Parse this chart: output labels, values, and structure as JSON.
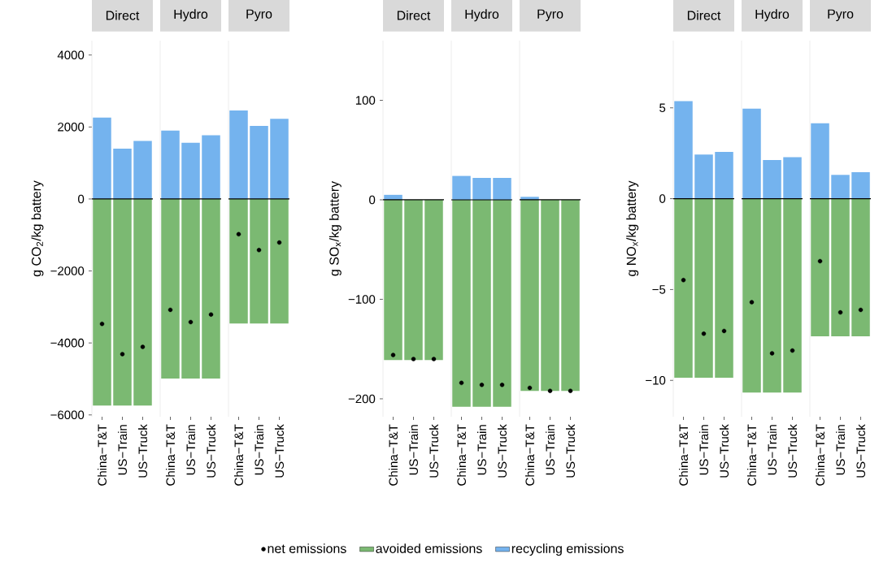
{
  "chart_data": [
    {
      "type": "bar",
      "title": "Direct",
      "ylabel": "g CO$_{2}$/kg battery",
      "categories": [
        "China−T&T",
        "US−Train",
        "US−Truck"
      ],
      "ylim": [
        -6050,
        4400
      ],
      "yticks": [
        {
          "value": 4000,
          "label": "4000"
        },
        {
          "value": 2000,
          "label": "2000"
        },
        {
          "value": 0,
          "label": "0"
        },
        {
          "value": -2000,
          "label": "−2000"
        },
        {
          "value": -4000,
          "label": "−4000"
        },
        {
          "value": -6000,
          "label": "−6000"
        }
      ],
      "stacked": true,
      "marker": "circle",
      "ref_lines": [
        {
          "axis": "y",
          "value": 0,
          "color": "#000000"
        }
      ],
      "series": [
        {
          "type": "scatter",
          "color": "#000000",
          "values": [
            -3470,
            -4310,
            -4110
          ]
        },
        {
          "color": "#7bb972",
          "values": [
            -5740,
            -5740,
            -5740
          ]
        },
        {
          "color": "#74b3ee",
          "values": [
            2260,
            1400,
            1610
          ]
        }
      ]
    },
    {
      "type": "bar",
      "title": "Hydro",
      "categories": [
        "China−T&T",
        "US−Train",
        "US−Truck"
      ],
      "ylim": [
        -6050,
        4400
      ],
      "tick_labels": "x",
      "stacked": true,
      "marker": "circle",
      "ref_lines": [
        {
          "axis": "y",
          "value": 0,
          "color": "#000000"
        }
      ],
      "series": [
        {
          "type": "scatter",
          "color": "#000000",
          "values": [
            -3080,
            -3420,
            -3210
          ]
        },
        {
          "color": "#7bb972",
          "values": [
            -4990,
            -4990,
            -4990
          ]
        },
        {
          "color": "#74b3ee",
          "values": [
            1900,
            1560,
            1770
          ]
        }
      ]
    },
    {
      "type": "bar",
      "title": "Pyro",
      "categories": [
        "China−T&T",
        "US−Train",
        "US−Truck"
      ],
      "ylim": [
        -6050,
        4400
      ],
      "tick_labels": "x",
      "stacked": true,
      "marker": "circle",
      "ref_lines": [
        {
          "axis": "y",
          "value": 0,
          "color": "#000000"
        }
      ],
      "series": [
        {
          "type": "scatter",
          "color": "#000000",
          "values": [
            -980,
            -1420,
            -1210
          ]
        },
        {
          "color": "#7bb972",
          "values": [
            -3460,
            -3460,
            -3460
          ]
        },
        {
          "color": "#74b3ee",
          "values": [
            2460,
            2030,
            2230
          ]
        }
      ]
    },
    {
      "type": "bar",
      "title": "Direct",
      "ylabel": "g SO$_{x}$/kg battery",
      "categories": [
        "China−T&T",
        "US−Train",
        "US−Truck"
      ],
      "ylim": [
        -218,
        160
      ],
      "yticks": [
        {
          "value": 100,
          "label": "100"
        },
        {
          "value": 0,
          "label": "0"
        },
        {
          "value": -100,
          "label": "−100"
        },
        {
          "value": -200,
          "label": "−200"
        }
      ],
      "stacked": true,
      "marker": "circle",
      "ref_lines": [
        {
          "axis": "y",
          "value": 0,
          "color": "#000000"
        }
      ],
      "series": [
        {
          "type": "scatter",
          "color": "#000000",
          "values": [
            -156,
            -160,
            -160
          ]
        },
        {
          "color": "#7bb972",
          "values": [
            -161,
            -161,
            -161
          ]
        },
        {
          "color": "#74b3ee",
          "values": [
            5,
            null,
            null
          ]
        }
      ]
    },
    {
      "type": "bar",
      "title": "Hydro",
      "categories": [
        "China−T&T",
        "US−Train",
        "US−Truck"
      ],
      "ylim": [
        -218,
        160
      ],
      "tick_labels": "x",
      "stacked": true,
      "marker": "circle",
      "legend": "bottom",
      "ref_lines": [
        {
          "axis": "y",
          "value": 0,
          "color": "#000000"
        }
      ],
      "series": [
        {
          "type": "scatter",
          "name": "net emissions",
          "color": "#000000",
          "values": [
            -184,
            -186,
            -186
          ]
        },
        {
          "name": "avoided emissions",
          "color": "#7bb972",
          "values": [
            -208,
            -208,
            -208
          ]
        },
        {
          "name": "recycling emissions",
          "color": "#74b3ee",
          "values": [
            24,
            22,
            22
          ]
        }
      ]
    },
    {
      "type": "bar",
      "title": "Pyro",
      "categories": [
        "China−T&T",
        "US−Train",
        "US−Truck"
      ],
      "ylim": [
        -218,
        160
      ],
      "tick_labels": "x",
      "stacked": true,
      "marker": "circle",
      "ref_lines": [
        {
          "axis": "y",
          "value": 0,
          "color": "#000000"
        }
      ],
      "series": [
        {
          "type": "scatter",
          "color": "#000000",
          "values": [
            -189,
            -192,
            -192
          ]
        },
        {
          "color": "#7bb972",
          "values": [
            -192,
            -192,
            -192
          ]
        },
        {
          "color": "#74b3ee",
          "values": [
            3,
            null,
            null
          ]
        }
      ]
    },
    {
      "type": "bar",
      "title": "Direct",
      "ylabel": "g NO$_{x}$/kg battery",
      "categories": [
        "China−T&T",
        "US−Train",
        "US−Truck"
      ],
      "ylim": [
        -12,
        8.7
      ],
      "yticks": [
        {
          "value": 5,
          "label": "5"
        },
        {
          "value": 0,
          "label": "0"
        },
        {
          "value": -5,
          "label": "−5"
        },
        {
          "value": -10,
          "label": "−10"
        }
      ],
      "stacked": true,
      "marker": "circle",
      "ref_lines": [
        {
          "axis": "y",
          "value": 0,
          "color": "#000000"
        }
      ],
      "series": [
        {
          "type": "scatter",
          "color": "#000000",
          "values": [
            -4.48,
            -7.43,
            -7.28
          ]
        },
        {
          "color": "#7bb972",
          "values": [
            -9.85,
            -9.85,
            -9.85
          ]
        },
        {
          "color": "#74b3ee",
          "values": [
            5.37,
            2.43,
            2.57
          ]
        }
      ]
    },
    {
      "type": "bar",
      "title": "Hydro",
      "categories": [
        "China−T&T",
        "US−Train",
        "US−Truck"
      ],
      "ylim": [
        -12,
        8.7
      ],
      "tick_labels": "x",
      "stacked": true,
      "marker": "circle",
      "ref_lines": [
        {
          "axis": "y",
          "value": 0,
          "color": "#000000"
        }
      ],
      "series": [
        {
          "type": "scatter",
          "color": "#000000",
          "values": [
            -5.7,
            -8.51,
            -8.36
          ]
        },
        {
          "color": "#7bb972",
          "values": [
            -10.67,
            -10.67,
            -10.67
          ]
        },
        {
          "color": "#74b3ee",
          "values": [
            4.96,
            2.13,
            2.28
          ]
        }
      ]
    },
    {
      "type": "bar",
      "title": "Pyro",
      "categories": [
        "China−T&T",
        "US−Train",
        "US−Truck"
      ],
      "ylim": [
        -12,
        8.7
      ],
      "tick_labels": "x",
      "stacked": true,
      "marker": "circle",
      "ref_lines": [
        {
          "axis": "y",
          "value": 0,
          "color": "#000000"
        }
      ],
      "series": [
        {
          "type": "scatter",
          "color": "#000000",
          "values": [
            -3.44,
            -6.26,
            -6.12
          ]
        },
        {
          "color": "#7bb972",
          "values": [
            -7.57,
            -7.57,
            -7.57
          ]
        },
        {
          "color": "#74b3ee",
          "values": [
            4.15,
            1.31,
            1.46
          ]
        }
      ]
    }
  ]
}
